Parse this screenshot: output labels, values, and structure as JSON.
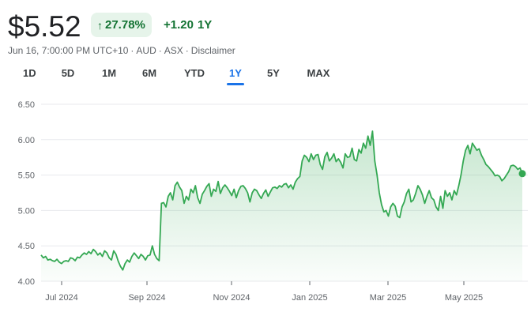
{
  "header": {
    "price": "$5.52",
    "change_percent": "27.78%",
    "change_amount": "+1.20",
    "change_period": "1Y"
  },
  "meta": {
    "timestamp": "Jun 16, 7:00:00 PM UTC+10",
    "currency": "AUD",
    "exchange": "ASX",
    "disclaimer": "Disclaimer"
  },
  "ranges": [
    "1D",
    "5D",
    "1M",
    "6M",
    "YTD",
    "1Y",
    "5Y",
    "MAX"
  ],
  "active_range": "1Y",
  "colors": {
    "line": "#34a853",
    "positive_text": "#137333",
    "badge_bg": "#e6f4ea",
    "active_tab": "#1a73e8"
  },
  "chart_data": {
    "type": "area",
    "ylim": [
      4.0,
      6.5
    ],
    "yticks": [
      "4.00",
      "4.50",
      "5.00",
      "5.50",
      "6.00",
      "6.50"
    ],
    "xticks": [
      "Jul 2024",
      "Sep 2024",
      "Nov 2024",
      "Jan 2025",
      "Mar 2025",
      "May 2025"
    ],
    "grid": true,
    "series": [
      {
        "values": [
          4.37,
          4.33,
          4.35,
          4.3,
          4.31,
          4.29,
          4.28,
          4.31,
          4.27,
          4.25,
          4.28,
          4.29,
          4.28,
          4.33,
          4.32,
          4.29,
          4.34,
          4.33,
          4.37,
          4.4,
          4.38,
          4.42,
          4.39,
          4.45,
          4.42,
          4.37,
          4.4,
          4.35,
          4.43,
          4.4,
          4.33,
          4.3,
          4.43,
          4.38,
          4.28,
          4.21,
          4.16,
          4.25,
          4.3,
          4.27,
          4.35,
          4.4,
          4.36,
          4.32,
          4.38,
          4.35,
          4.3,
          4.36,
          4.37,
          4.5,
          4.38,
          4.32,
          4.29,
          5.1,
          5.11,
          5.05,
          5.2,
          5.25,
          5.15,
          5.35,
          5.4,
          5.33,
          5.28,
          5.1,
          5.2,
          5.15,
          5.3,
          5.25,
          5.35,
          5.18,
          5.1,
          5.23,
          5.28,
          5.34,
          5.38,
          5.2,
          5.3,
          5.27,
          5.41,
          5.24,
          5.32,
          5.36,
          5.32,
          5.27,
          5.21,
          5.3,
          5.18,
          5.28,
          5.34,
          5.35,
          5.31,
          5.25,
          5.12,
          5.25,
          5.3,
          5.28,
          5.22,
          5.17,
          5.24,
          5.29,
          5.2,
          5.26,
          5.32,
          5.33,
          5.31,
          5.35,
          5.33,
          5.37,
          5.38,
          5.32,
          5.36,
          5.3,
          5.4,
          5.45,
          5.48,
          5.7,
          5.78,
          5.75,
          5.69,
          5.8,
          5.72,
          5.78,
          5.79,
          5.65,
          5.58,
          5.76,
          5.82,
          5.7,
          5.74,
          5.8,
          5.69,
          5.73,
          5.68,
          5.6,
          5.8,
          5.75,
          5.76,
          5.88,
          5.72,
          5.7,
          5.86,
          5.81,
          5.95,
          5.88,
          6.05,
          5.92,
          6.12,
          5.7,
          5.5,
          5.25,
          5.08,
          4.98,
          5.0,
          4.92,
          5.05,
          5.1,
          5.06,
          4.92,
          4.9,
          5.05,
          5.12,
          5.24,
          5.3,
          5.12,
          5.15,
          5.24,
          5.35,
          5.3,
          5.22,
          5.1,
          5.2,
          5.28,
          5.18,
          5.15,
          5.05,
          5.0,
          5.2,
          5.03,
          5.28,
          5.2,
          5.25,
          5.15,
          5.28,
          5.22,
          5.35,
          5.5,
          5.7,
          5.85,
          5.92,
          5.8,
          5.95,
          5.9,
          5.85,
          5.87,
          5.78,
          5.72,
          5.65,
          5.62,
          5.58,
          5.54,
          5.49,
          5.5,
          5.48,
          5.42,
          5.45,
          5.5,
          5.55,
          5.63,
          5.64,
          5.62,
          5.58,
          5.6,
          5.52
        ]
      }
    ]
  }
}
